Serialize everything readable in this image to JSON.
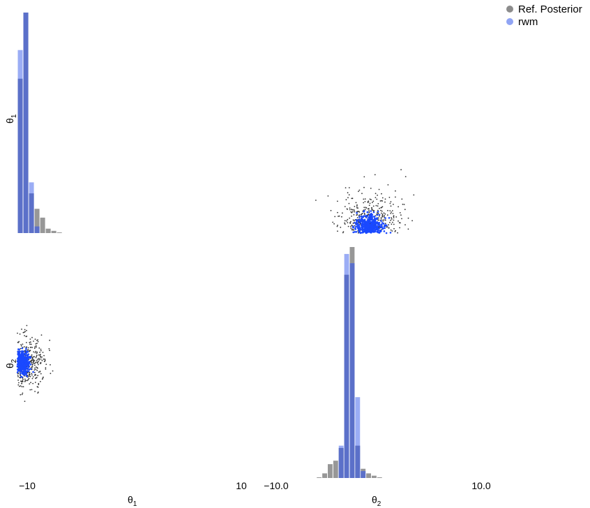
{
  "legend": {
    "items": [
      {
        "label": "Ref. Posterior",
        "color": "#8c8c8c"
      },
      {
        "label": "rwm",
        "color": "#90a4f4"
      }
    ]
  },
  "colors": {
    "ref_hist": "#8c8c8c",
    "rwm_hist": "#90a4f4",
    "ref_points": "#333333",
    "rwm_points": "#1a49ff"
  },
  "chart_data": {
    "type": "pairplot",
    "parameters": [
      "θ1",
      "θ2"
    ],
    "axis_labels": {
      "theta1": {
        "main": "θ",
        "sub": "1"
      },
      "theta2": {
        "main": "θ",
        "sub": "2"
      }
    },
    "xlim": {
      "theta1": [
        -10,
        10
      ],
      "theta2": [
        -10.0,
        10.0
      ]
    },
    "tick_labels": {
      "theta1": [
        "−10",
        "10"
      ],
      "theta2": [
        "−10.0",
        "10.0"
      ]
    },
    "marginals": [
      {
        "parameter": "θ1",
        "bin_edges": [
          -10.0,
          -9.5,
          -9.0,
          -8.5,
          -8.0,
          -7.5,
          -7.0,
          -6.5,
          -6.0
        ],
        "series": [
          {
            "name": "Ref. Posterior",
            "density": [
              0.7,
              1.0,
              0.18,
              0.11,
              0.07,
              0.02,
              0.01,
              0.003
            ]
          },
          {
            "name": "rwm",
            "density": [
              0.83,
              1.0,
              0.23,
              0.03,
              0.0,
              0.0,
              0.0,
              0.0
            ]
          }
        ]
      },
      {
        "parameter": "θ2",
        "bin_edges": [
          -5.0,
          -4.5,
          -4.0,
          -3.5,
          -3.0,
          -2.5,
          -2.0,
          -1.5,
          -1.0,
          -0.5,
          0.0,
          0.5,
          1.0,
          1.5,
          2.0,
          2.5,
          3.0
        ],
        "series": [
          {
            "name": "Ref. Posterior",
            "density": [
              0.003,
              0.02,
              0.06,
              0.075,
              0.13,
              0.88,
              1.0,
              0.14,
              0.04,
              0.02,
              0.01,
              0.003,
              0.0,
              0.0,
              0.0,
              0.0
            ]
          },
          {
            "name": "rwm",
            "density": [
              0.0,
              0.0,
              0.0,
              0.0,
              0.14,
              0.97,
              0.93,
              0.35,
              0.03,
              0.0,
              0.0,
              0.0,
              0.0,
              0.0,
              0.0,
              0.0
            ]
          }
        ]
      }
    ],
    "scatter": [
      {
        "x_parameter": "θ2",
        "y_parameter": "θ1",
        "series": [
          {
            "name": "Ref. Posterior",
            "center": [
              -0.2,
              -9.6
            ],
            "spread": [
              1.4,
              0.55
            ],
            "n": 450
          },
          {
            "name": "rwm",
            "center": [
              -0.2,
              -9.75
            ],
            "spread": [
              0.6,
              0.22
            ],
            "n": 500
          }
        ]
      },
      {
        "x_parameter": "θ1",
        "y_parameter": "θ2",
        "series": [
          {
            "name": "Ref. Posterior",
            "center": [
              -9.2,
              0.0
            ],
            "spread": [
              0.8,
              1.1
            ],
            "n": 450
          },
          {
            "name": "rwm",
            "center": [
              -9.6,
              0.0
            ],
            "spread": [
              0.32,
              0.45
            ],
            "n": 500
          }
        ]
      }
    ],
    "grid": false,
    "legend_position": "top-right"
  }
}
